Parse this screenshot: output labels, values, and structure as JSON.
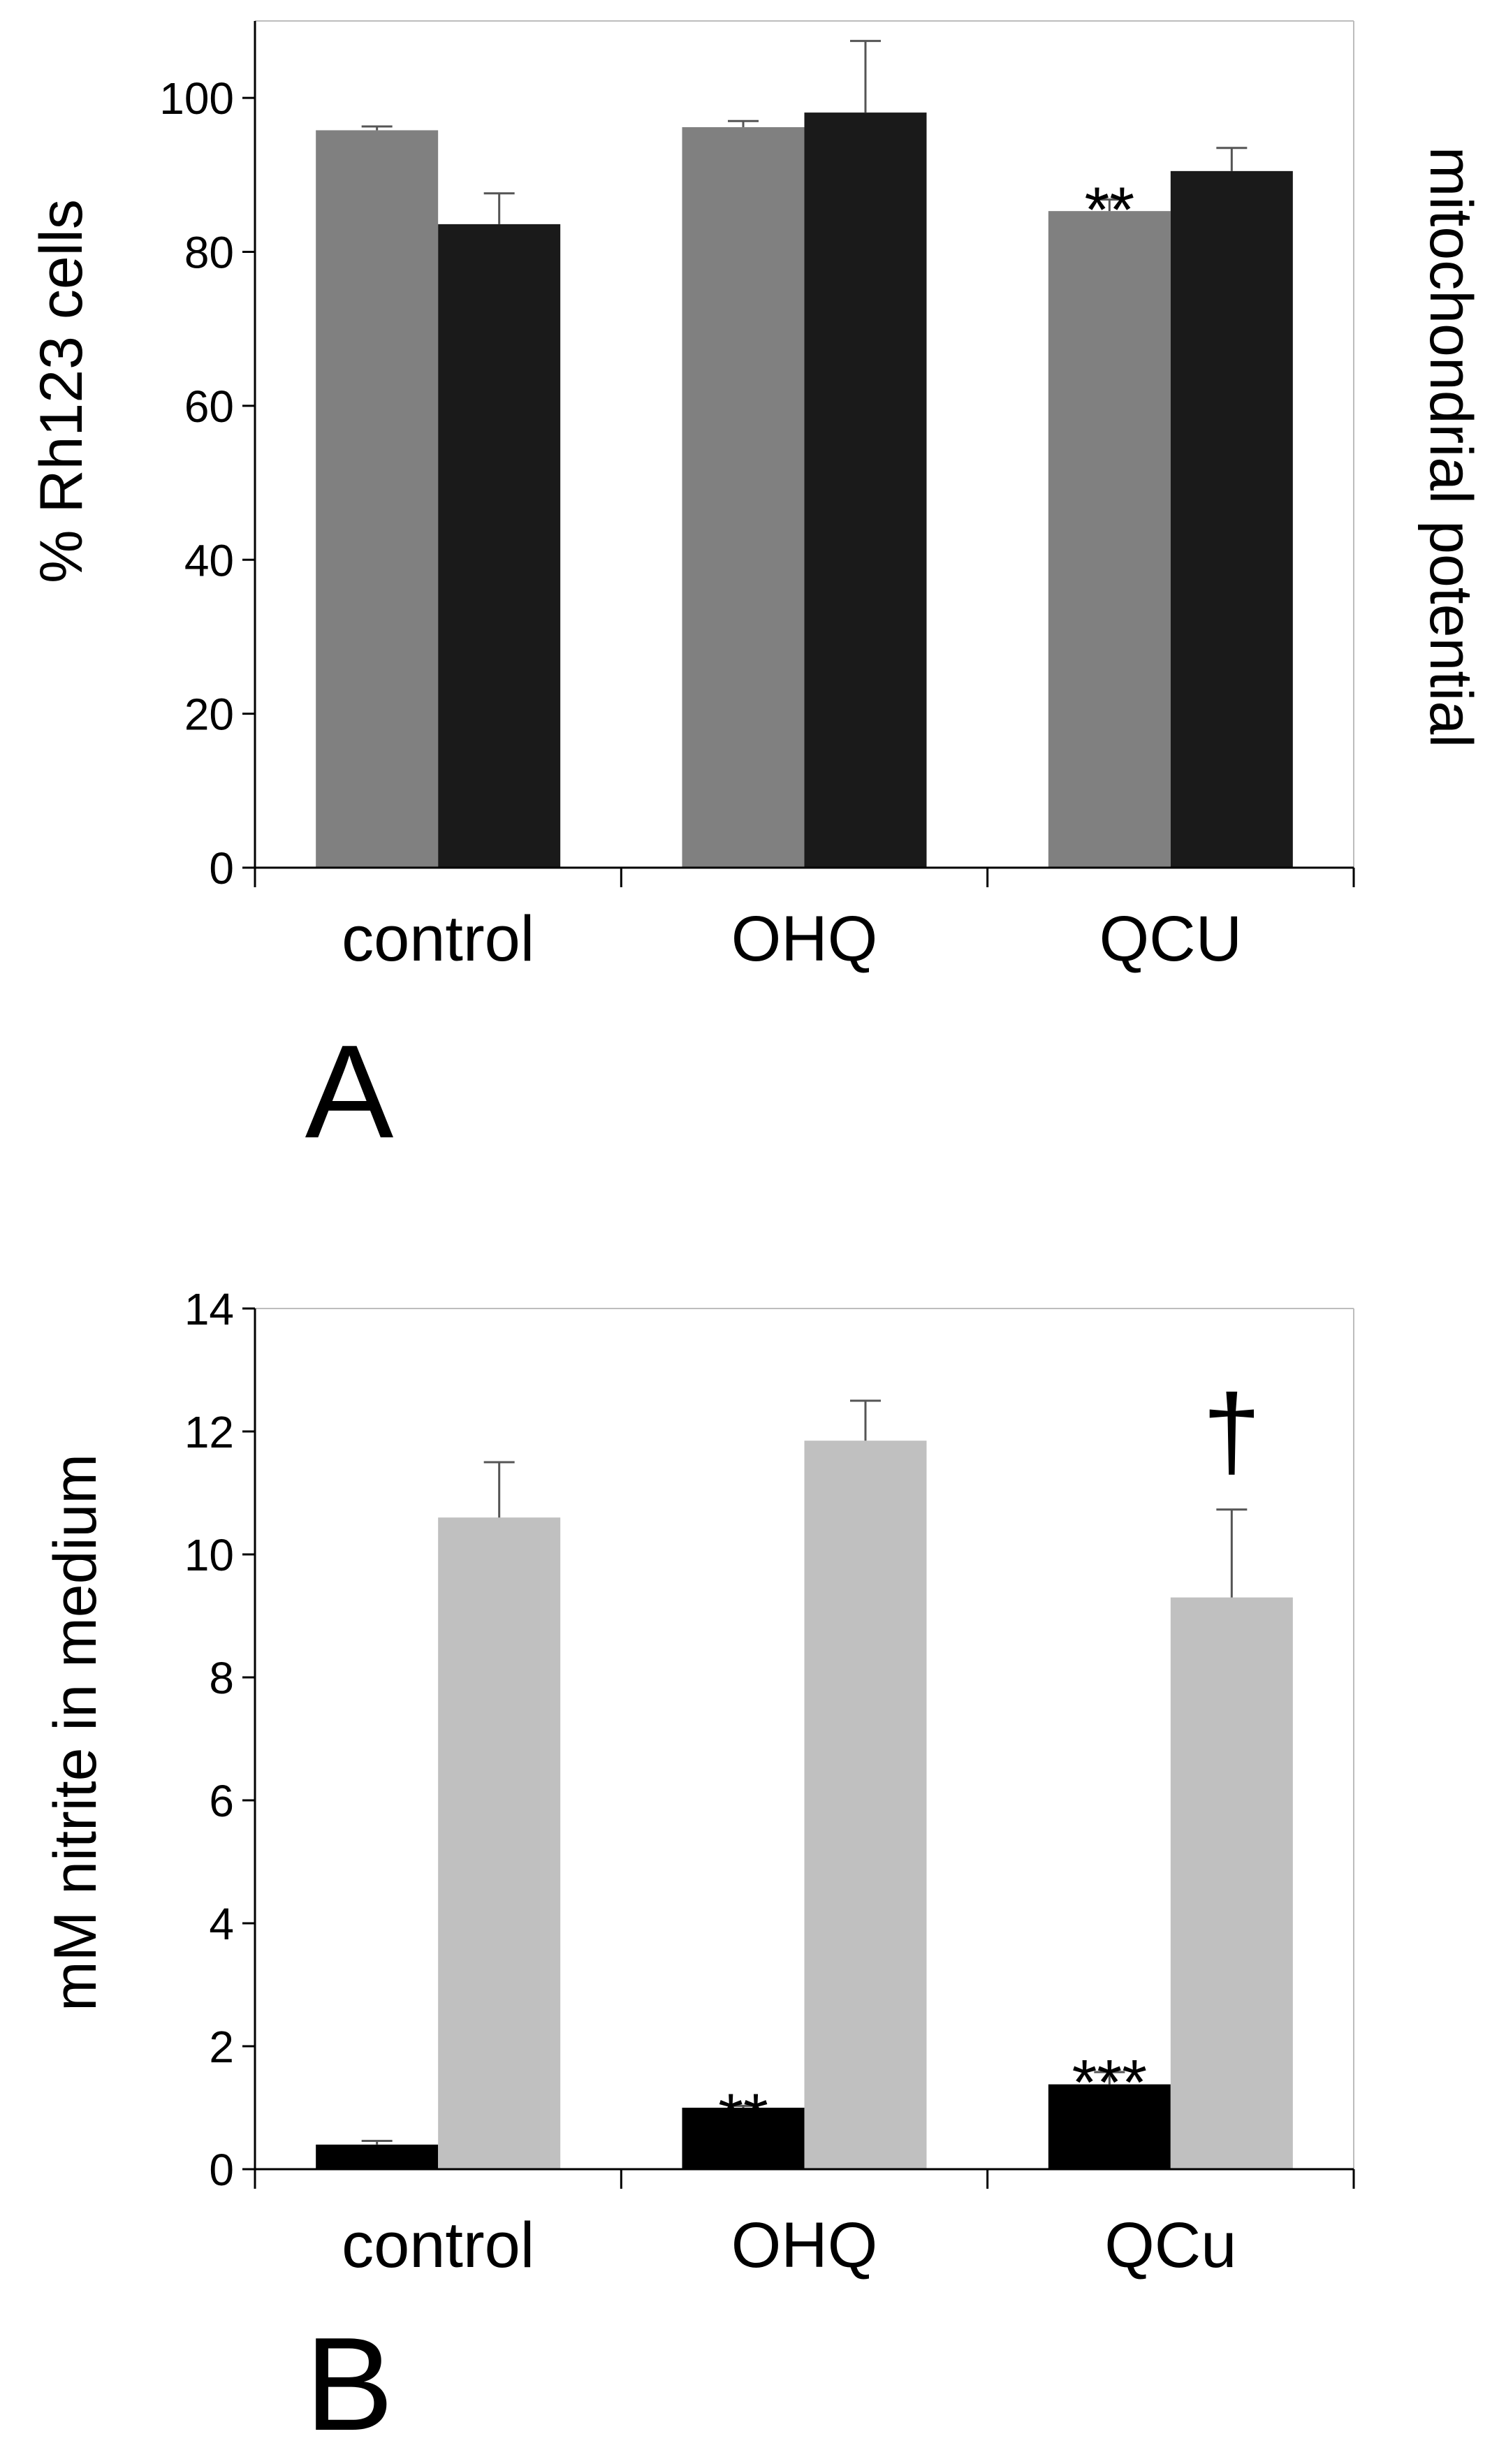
{
  "panels": [
    {
      "panel_label": "A",
      "ylabel": "% Rh123 cells",
      "right_label": "mitochondrial potential",
      "categories": [
        "control",
        "OHQ",
        "QCU"
      ],
      "yticks": [
        "0",
        "20",
        "40",
        "60",
        "80",
        "100"
      ],
      "annotations": [
        {
          "category": 2,
          "series": 0,
          "text": "**"
        }
      ]
    },
    {
      "panel_label": "B",
      "ylabel": "mM nitrite in medium",
      "categories": [
        "control",
        "OHQ",
        "QCu"
      ],
      "yticks": [
        "0",
        "2",
        "4",
        "6",
        "8",
        "10",
        "12",
        "14"
      ],
      "annotations": [
        {
          "category": 1,
          "series": 0,
          "text": "**"
        },
        {
          "category": 2,
          "series": 0,
          "text": "***"
        },
        {
          "category": 2,
          "series": 1,
          "text": "†"
        }
      ]
    }
  ],
  "chart_data": [
    {
      "type": "bar",
      "title": "",
      "xlabel": "",
      "ylabel": "% Rh123 cells",
      "right_axis_label": "mitochondrial potential",
      "categories": [
        "control",
        "OHQ",
        "QCU"
      ],
      "ylim": [
        0,
        110
      ],
      "ytick_values": [
        0,
        20,
        40,
        60,
        80,
        100
      ],
      "grid": false,
      "series": [
        {
          "color": "#808080",
          "values": [
            95.8,
            96.2,
            85.3
          ],
          "errors": [
            0.5,
            0.8,
            1.5
          ]
        },
        {
          "color": "#1a1a1a",
          "values": [
            83.6,
            98.1,
            90.5
          ],
          "errors": [
            4.0,
            9.3,
            3.0
          ]
        }
      ]
    },
    {
      "type": "bar",
      "title": "",
      "xlabel": "",
      "ylabel": "mM nitrite in medium",
      "categories": [
        "control",
        "OHQ",
        "QCu"
      ],
      "ylim": [
        0,
        14
      ],
      "ytick_values": [
        0,
        2,
        4,
        6,
        8,
        10,
        12,
        14
      ],
      "grid": false,
      "series": [
        {
          "color": "#000000",
          "values": [
            0.4,
            1.0,
            1.38
          ],
          "errors": [
            0.06,
            0.03,
            0.2
          ]
        },
        {
          "color": "#c0c0c0",
          "values": [
            10.6,
            11.85,
            9.3
          ],
          "errors": [
            0.9,
            0.65,
            1.43
          ]
        }
      ]
    }
  ]
}
